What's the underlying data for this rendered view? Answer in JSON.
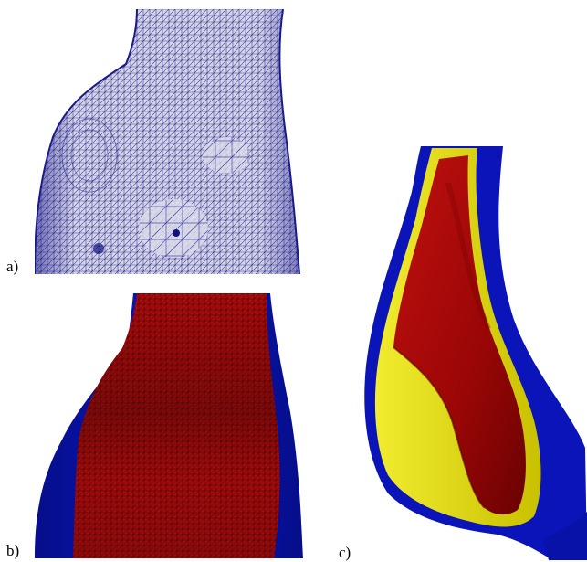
{
  "figure": {
    "panels": [
      {
        "label": "a)",
        "content": "mesh-surface-wireframe",
        "colors": {
          "surface": "#d8d8e4",
          "edges": "#2a2a9a"
        }
      },
      {
        "label": "b)",
        "content": "mesh-section-red-on-blue",
        "colors": {
          "outer": "#0a12b4",
          "inner": "#b40a0a",
          "edges": "#3a0000"
        }
      },
      {
        "label": "c)",
        "content": "layered-cutaway-blue-yellow-red",
        "colors": {
          "blue": "#0a14b8",
          "yellow": "#e8e010",
          "red": "#b00a0a"
        }
      }
    ]
  }
}
